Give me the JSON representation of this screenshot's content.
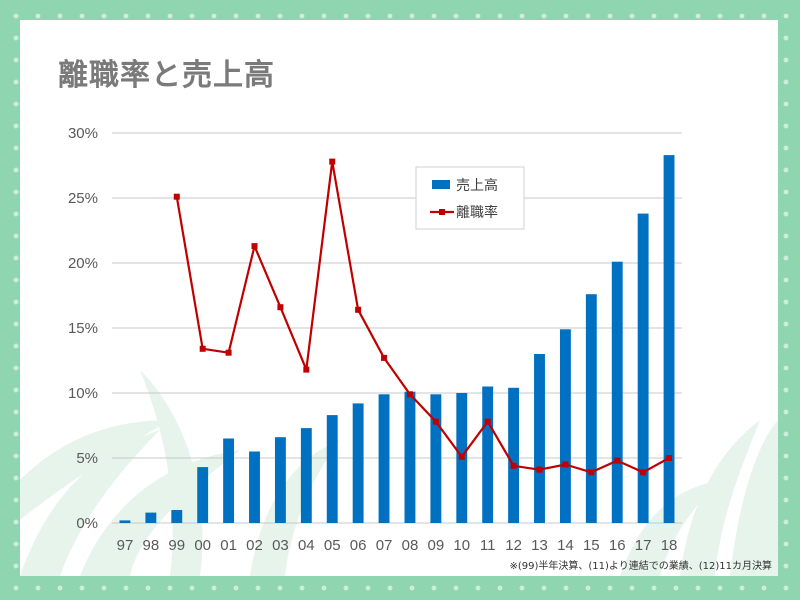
{
  "slide": {
    "title": "離職率と売上高",
    "footnote": "※(99)半年決算、(11)より連結での業績、(12)11カ月決算"
  },
  "colors": {
    "bar": "#0070c0",
    "line": "#c00000",
    "title_text": "#7a7a7a",
    "background": "#8fd6b0"
  },
  "chart_data": {
    "type": "bar",
    "categories": [
      "97",
      "98",
      "99",
      "00",
      "01",
      "02",
      "03",
      "04",
      "05",
      "06",
      "07",
      "08",
      "09",
      "10",
      "11",
      "12",
      "13",
      "14",
      "15",
      "16",
      "17",
      "18"
    ],
    "y_ticks": [
      "0%",
      "5%",
      "10%",
      "15%",
      "20%",
      "25%",
      "30%"
    ],
    "ylim": [
      0,
      30
    ],
    "grid": true,
    "legend_position": "upper-center",
    "series": [
      {
        "name": "売上高",
        "type": "bar",
        "values": [
          0.2,
          0.8,
          1.0,
          4.3,
          6.5,
          5.5,
          6.6,
          7.3,
          8.3,
          9.2,
          9.9,
          10.1,
          9.9,
          10.0,
          10.5,
          10.4,
          13.0,
          14.9,
          17.6,
          20.1,
          23.8,
          28.3
        ]
      },
      {
        "name": "離職率",
        "type": "line",
        "values": [
          null,
          null,
          25.1,
          13.4,
          13.1,
          21.3,
          16.6,
          11.8,
          27.8,
          16.4,
          12.7,
          9.9,
          7.8,
          5.1,
          7.8,
          4.4,
          4.1,
          4.5,
          3.9,
          4.8,
          3.9,
          5.0
        ]
      }
    ]
  }
}
